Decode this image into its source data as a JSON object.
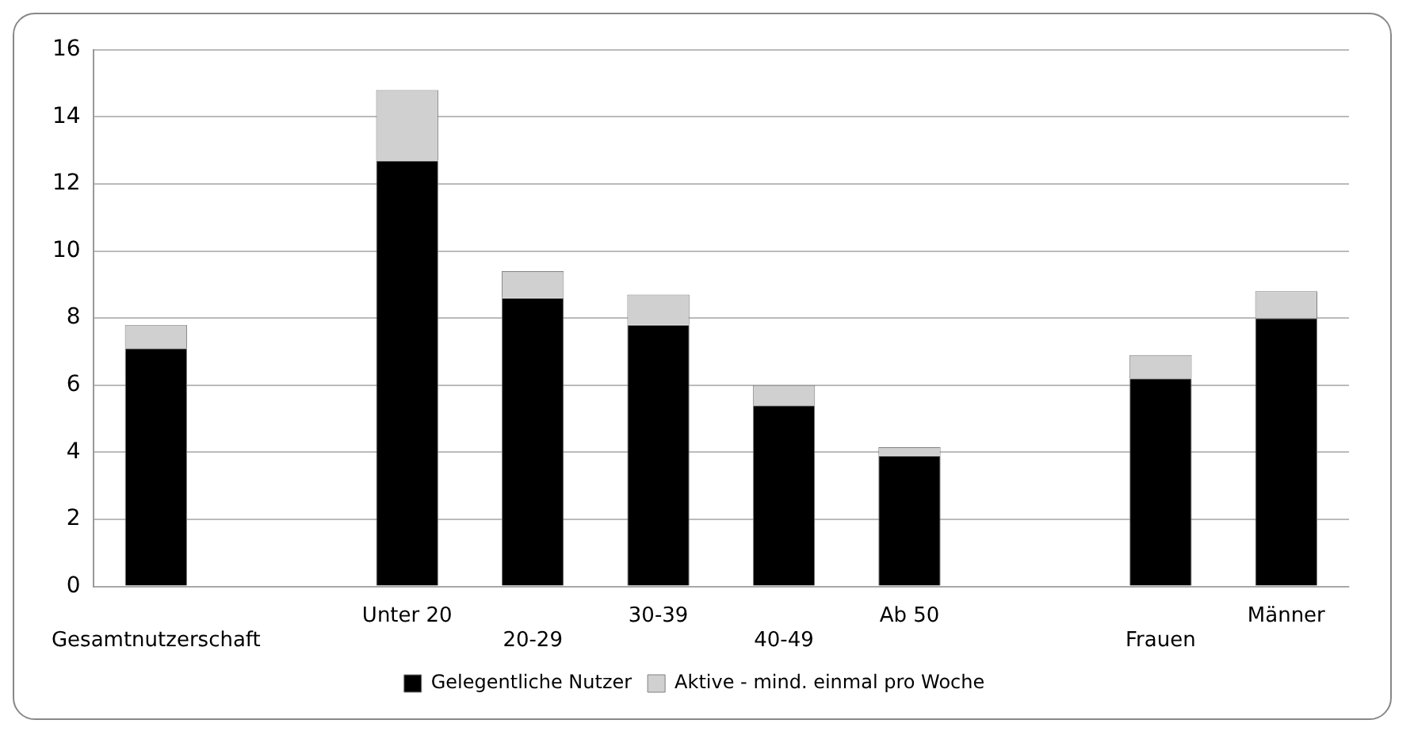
{
  "chart_data": {
    "type": "bar",
    "stacked": true,
    "categories": [
      "Gesamtnutzerschaft",
      null,
      "Unter 20",
      "20-29",
      "30-39",
      "40-49",
      "Ab 50",
      null,
      "Frauen",
      "Männer"
    ],
    "series": [
      {
        "name": "Gelegentliche Nutzer",
        "color": "#000000",
        "values": [
          7.1,
          null,
          12.7,
          8.6,
          7.8,
          5.4,
          3.9,
          null,
          6.2,
          8.0
        ]
      },
      {
        "name": "Aktive - mind. einmal pro Woche",
        "color": "#d0d0d0",
        "values": [
          0.7,
          null,
          2.1,
          0.8,
          0.9,
          0.6,
          0.25,
          null,
          0.7,
          0.8
        ]
      }
    ],
    "ylim": [
      0,
      16
    ],
    "yticks": [
      0,
      2,
      4,
      6,
      8,
      10,
      12,
      14,
      16
    ],
    "grid": "y",
    "legend": "bottom"
  }
}
